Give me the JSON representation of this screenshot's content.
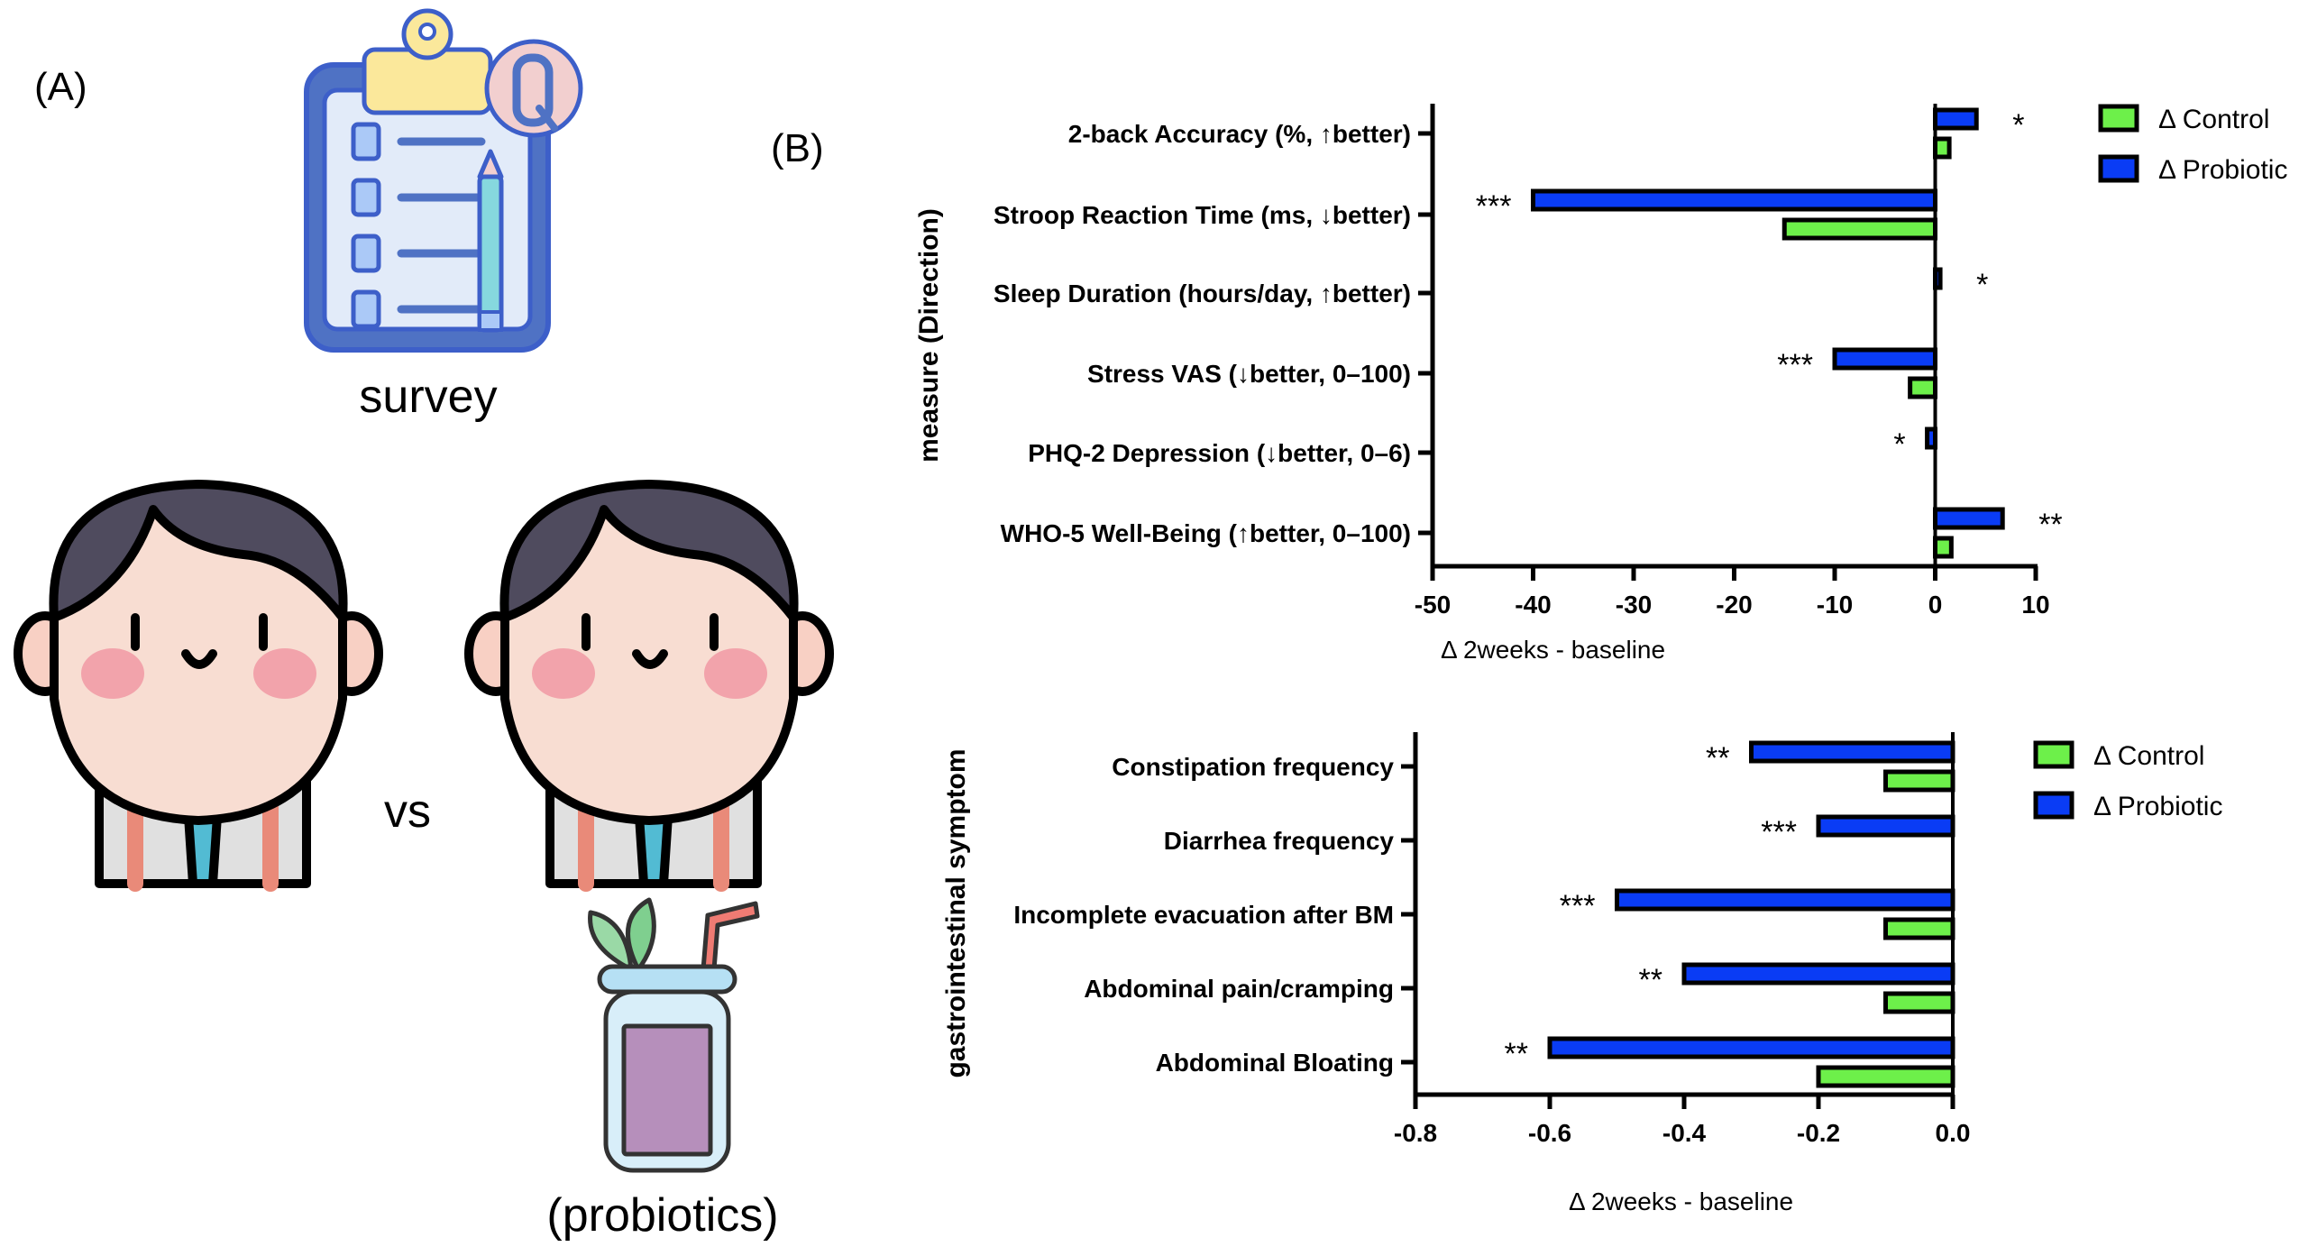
{
  "panel_a": {
    "label": "(A)",
    "survey_caption": "survey",
    "vs_label": "vs",
    "probiotics_caption": "(probiotics)",
    "icons": [
      "clipboard-survey-icon",
      "person-control-icon",
      "person-probiotic-icon",
      "probiotic-jar-icon"
    ]
  },
  "panel_b": {
    "label": "(B)"
  },
  "colors": {
    "control": "#6df04a",
    "probiotic": "#0a3cf5",
    "outline": "#000000"
  },
  "chart_data": [
    {
      "type": "bar",
      "orientation": "horizontal",
      "title": "",
      "ylabel": "measure (Direction)",
      "xlabel": "Δ 2weeks - baseline",
      "xlim": [
        -50,
        10
      ],
      "xticks": [
        -50,
        -40,
        -30,
        -20,
        -10,
        0,
        10
      ],
      "xtick_labels": [
        "-50",
        "-40",
        "-30",
        "-20",
        "-10",
        "0",
        "10"
      ],
      "categories": [
        "2-back Accuracy (%, ↑better)",
        "Stroop Reaction Time (ms, ↓better)",
        "Sleep Duration (hours/day, ↑better)",
        "Stress VAS (↓better, 0–100)",
        "PHQ-2 Depression (↓better, 0–6)",
        "WHO-5 Well-Being (↑better, 0–100)"
      ],
      "series": [
        {
          "name": "Δ Probiotic",
          "values": [
            4.1,
            -40,
            0.5,
            -10,
            -0.8,
            6.7
          ]
        },
        {
          "name": "Δ Control",
          "values": [
            1.4,
            -15,
            0,
            -2.5,
            0,
            1.6
          ]
        }
      ],
      "annotations": [
        "*",
        "***",
        "*",
        "***",
        "*",
        "**"
      ],
      "legend": {
        "entries": [
          "Δ Control",
          "Δ Probiotic"
        ],
        "placement": "top-right"
      },
      "grid": false
    },
    {
      "type": "bar",
      "orientation": "horizontal",
      "title": "",
      "ylabel": "gastrointestinal symptom",
      "xlabel": "Δ 2weeks - baseline",
      "xlim": [
        -0.8,
        0.0
      ],
      "xticks": [
        -0.8,
        -0.6,
        -0.4,
        -0.2,
        0.0
      ],
      "xtick_labels": [
        "-0.8",
        "-0.6",
        "-0.4",
        "-0.2",
        "0.0"
      ],
      "categories": [
        "Constipation frequency",
        "Diarrhea frequency",
        "Incomplete evacuation after BM",
        "Abdominal pain/cramping",
        "Abdominal Bloating"
      ],
      "series": [
        {
          "name": "Δ Probiotic",
          "values": [
            -0.3,
            -0.2,
            -0.5,
            -0.4,
            -0.6
          ]
        },
        {
          "name": "Δ Control",
          "values": [
            -0.1,
            0.0,
            -0.1,
            -0.1,
            -0.2
          ]
        }
      ],
      "annotations": [
        "**",
        "***",
        "***",
        "**",
        "**"
      ],
      "legend": {
        "entries": [
          "Δ Control",
          "Δ Probiotic"
        ],
        "placement": "top-right"
      },
      "grid": false
    }
  ]
}
